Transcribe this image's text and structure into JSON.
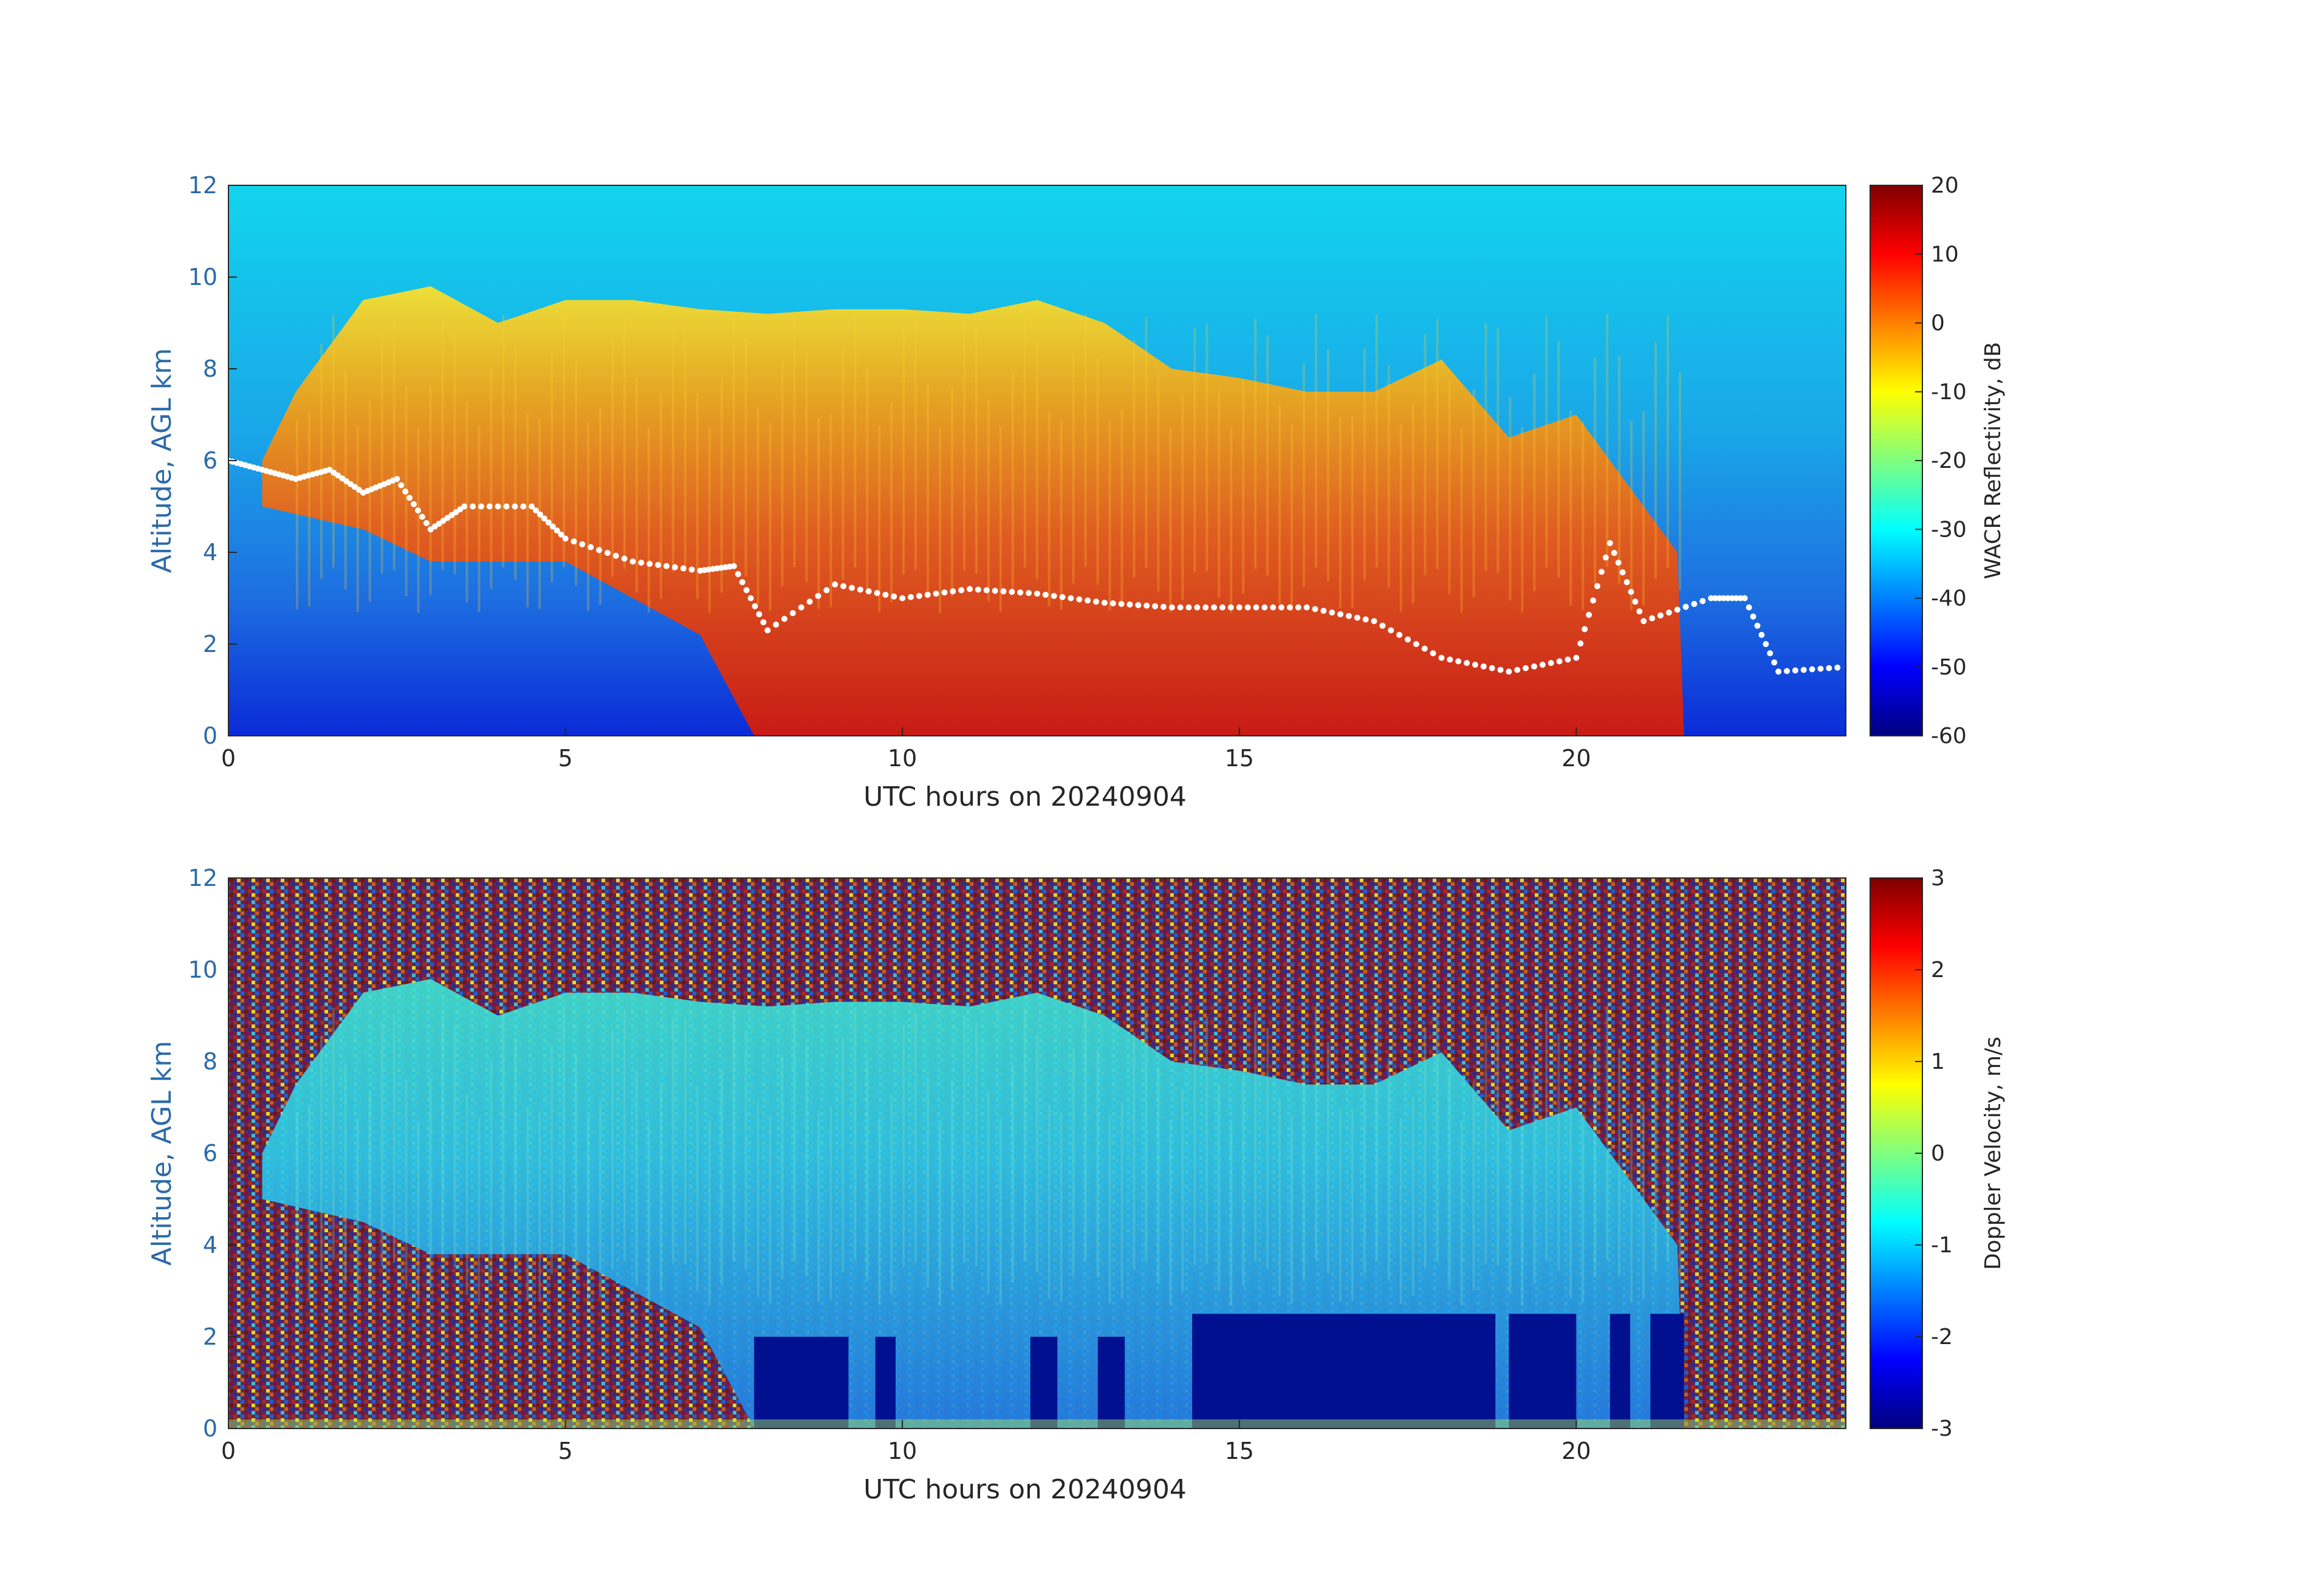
{
  "chart_data": [
    {
      "type": "heatmap",
      "title": "",
      "xlabel": "UTC hours on 20240904",
      "ylabel": "Altitude, AGL km",
      "xlim": [
        0,
        24
      ],
      "ylim": [
        0,
        12
      ],
      "xticks": [
        "0",
        "5",
        "10",
        "15",
        "20"
      ],
      "yticks": [
        "0",
        "2",
        "4",
        "6",
        "8",
        "10",
        "12"
      ],
      "colorbar": {
        "label": "WACR Reflectivity, dB",
        "range": [
          -60,
          20
        ],
        "ticks": [
          "20",
          "10",
          "0",
          "-10",
          "-20",
          "-30",
          "-40",
          "-50",
          "-60"
        ],
        "colormap": "jet"
      },
      "cloud_top_km": [
        [
          0.5,
          6.0
        ],
        [
          1.0,
          7.5
        ],
        [
          2.0,
          9.5
        ],
        [
          3.0,
          9.8
        ],
        [
          4.0,
          9.0
        ],
        [
          5.0,
          9.5
        ],
        [
          6.0,
          9.5
        ],
        [
          7.0,
          9.3
        ],
        [
          8.0,
          9.2
        ],
        [
          9.0,
          9.3
        ],
        [
          10.0,
          9.3
        ],
        [
          11.0,
          9.2
        ],
        [
          12.0,
          9.5
        ],
        [
          13.0,
          9.0
        ],
        [
          14.0,
          8.0
        ],
        [
          15.0,
          7.8
        ],
        [
          16.0,
          7.5
        ],
        [
          17.0,
          7.5
        ],
        [
          18.0,
          8.2
        ],
        [
          19.0,
          6.5
        ],
        [
          20.0,
          7.0
        ],
        [
          21.0,
          5.0
        ],
        [
          21.5,
          4.0
        ]
      ],
      "cloud_base_km": [
        [
          0.5,
          5.0
        ],
        [
          2.0,
          4.5
        ],
        [
          3.0,
          3.8
        ],
        [
          5.0,
          3.8
        ],
        [
          6.0,
          3.0
        ],
        [
          7.0,
          2.2
        ],
        [
          7.8,
          0.0
        ],
        [
          21.6,
          0.0
        ]
      ],
      "white_dot_trace_km": [
        [
          0.0,
          6.0
        ],
        [
          0.5,
          5.8
        ],
        [
          1.0,
          5.6
        ],
        [
          1.5,
          5.8
        ],
        [
          2.0,
          5.3
        ],
        [
          2.5,
          5.6
        ],
        [
          3.0,
          4.5
        ],
        [
          3.5,
          5.0
        ],
        [
          4.5,
          5.0
        ],
        [
          5.0,
          4.3
        ],
        [
          6.0,
          3.8
        ],
        [
          7.0,
          3.6
        ],
        [
          7.5,
          3.7
        ],
        [
          8.0,
          2.3
        ],
        [
          9.0,
          3.3
        ],
        [
          10.0,
          3.0
        ],
        [
          11.0,
          3.2
        ],
        [
          12.0,
          3.1
        ],
        [
          13.0,
          2.9
        ],
        [
          14.0,
          2.8
        ],
        [
          15.0,
          2.8
        ],
        [
          16.0,
          2.8
        ],
        [
          17.0,
          2.5
        ],
        [
          18.0,
          1.7
        ],
        [
          19.0,
          1.4
        ],
        [
          20.0,
          1.7
        ],
        [
          20.5,
          4.2
        ],
        [
          21.0,
          2.5
        ],
        [
          22.0,
          3.0
        ],
        [
          22.5,
          3.0
        ],
        [
          23.0,
          1.4
        ],
        [
          24.0,
          1.5
        ]
      ]
    },
    {
      "type": "heatmap",
      "title": "",
      "xlabel": "UTC hours on 20240904",
      "ylabel": "Altitude, AGL km",
      "xlim": [
        0,
        24
      ],
      "ylim": [
        0,
        12
      ],
      "xticks": [
        "0",
        "5",
        "10",
        "15",
        "20"
      ],
      "yticks": [
        "0",
        "2",
        "4",
        "6",
        "8",
        "10",
        "12"
      ],
      "colorbar": {
        "label": "Doppler Velocity, m/s",
        "range": [
          -3,
          3
        ],
        "ticks": [
          "3",
          "2",
          "1",
          "0",
          "-1",
          "-2",
          "-3"
        ],
        "colormap": "jet"
      },
      "cloud_top_km": [
        [
          0.5,
          6.0
        ],
        [
          1.0,
          7.5
        ],
        [
          2.0,
          9.5
        ],
        [
          3.0,
          9.8
        ],
        [
          4.0,
          9.0
        ],
        [
          5.0,
          9.5
        ],
        [
          6.0,
          9.5
        ],
        [
          7.0,
          9.3
        ],
        [
          8.0,
          9.2
        ],
        [
          9.0,
          9.3
        ],
        [
          10.0,
          9.3
        ],
        [
          11.0,
          9.2
        ],
        [
          12.0,
          9.5
        ],
        [
          13.0,
          9.0
        ],
        [
          14.0,
          8.0
        ],
        [
          15.0,
          7.8
        ],
        [
          16.0,
          7.5
        ],
        [
          17.0,
          7.5
        ],
        [
          18.0,
          8.2
        ],
        [
          19.0,
          6.5
        ],
        [
          20.0,
          7.0
        ],
        [
          21.0,
          5.0
        ],
        [
          21.5,
          4.0
        ]
      ],
      "rain_columns_hours": [
        [
          7.8,
          9.2
        ],
        [
          9.6,
          9.9
        ],
        [
          11.9,
          12.3
        ],
        [
          12.9,
          13.3
        ],
        [
          14.3,
          18.8
        ],
        [
          19.0,
          20.0
        ],
        [
          20.5,
          20.8
        ],
        [
          21.1,
          21.6
        ]
      ]
    }
  ]
}
